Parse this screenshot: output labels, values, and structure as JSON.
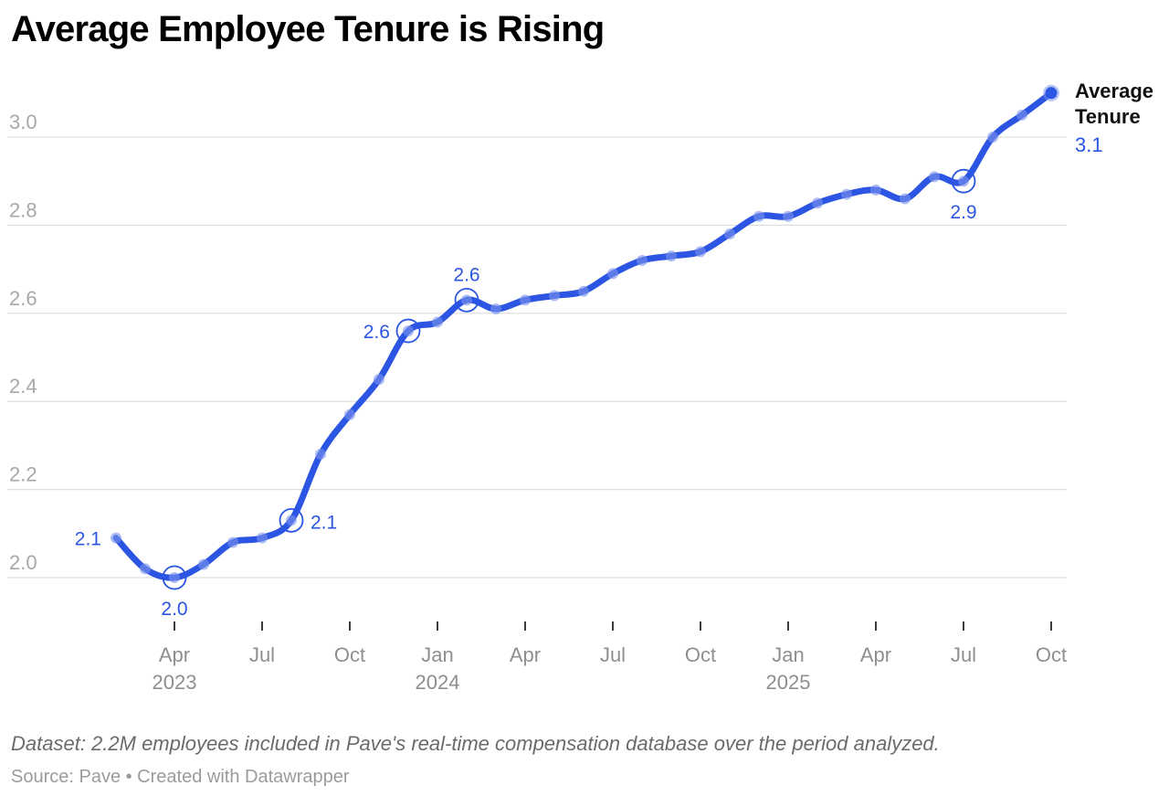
{
  "title": "Average Employee Tenure is Rising",
  "legend": {
    "line1": "Average",
    "line2": "Tenure",
    "value": "3.1"
  },
  "footer": {
    "dataset_note": "Dataset: 2.2M employees included in Pave's real-time compensation database over the period analyzed.",
    "source_line": "Source: Pave • Created with Datawrapper"
  },
  "colors": {
    "accent_blue": "#2b55e2",
    "dot_blue": "#7b93ec",
    "grid_line": "#e0e0e0",
    "y_tick_label": "#a8a8a8",
    "x_tick_label": "#8f8f8f",
    "x_tick_mark": "#3d3d3d",
    "title_text": "#000000",
    "dataset_text": "#6b6b6b",
    "source_text": "#9b9b9b"
  },
  "chart_data": {
    "type": "line",
    "title": "Average Employee Tenure is Rising",
    "xlabel": "",
    "ylabel": "",
    "grid": "horizontal",
    "legend_position": "right-of-last-point",
    "ylim": [
      1.93,
      3.17
    ],
    "yticks": [
      2.0,
      2.2,
      2.4,
      2.6,
      2.8,
      3.0
    ],
    "x": [
      "2023-02",
      "2023-03",
      "2023-04",
      "2023-05",
      "2023-06",
      "2023-07",
      "2023-08",
      "2023-09",
      "2023-10",
      "2023-11",
      "2023-12",
      "2024-01",
      "2024-02",
      "2024-03",
      "2024-04",
      "2024-05",
      "2024-06",
      "2024-07",
      "2024-08",
      "2024-09",
      "2024-10",
      "2024-11",
      "2024-12",
      "2025-01",
      "2025-02",
      "2025-03",
      "2025-04",
      "2025-05",
      "2025-06",
      "2025-07",
      "2025-08",
      "2025-09",
      "2025-10"
    ],
    "series": [
      {
        "name": "Average Tenure",
        "values": [
          2.09,
          2.02,
          2.0,
          2.03,
          2.08,
          2.09,
          2.13,
          2.28,
          2.37,
          2.45,
          2.56,
          2.58,
          2.63,
          2.61,
          2.63,
          2.64,
          2.65,
          2.69,
          2.72,
          2.73,
          2.74,
          2.78,
          2.82,
          2.82,
          2.85,
          2.87,
          2.88,
          2.86,
          2.91,
          2.9,
          3.0,
          3.05,
          3.1
        ]
      }
    ],
    "x_ticks": [
      {
        "index": 2,
        "label": "Apr",
        "year": "2023"
      },
      {
        "index": 5,
        "label": "Jul"
      },
      {
        "index": 8,
        "label": "Oct"
      },
      {
        "index": 11,
        "label": "Jan",
        "year": "2024"
      },
      {
        "index": 14,
        "label": "Apr"
      },
      {
        "index": 17,
        "label": "Jul"
      },
      {
        "index": 20,
        "label": "Oct"
      },
      {
        "index": 23,
        "label": "Jan",
        "year": "2025"
      },
      {
        "index": 26,
        "label": "Apr"
      },
      {
        "index": 29,
        "label": "Jul"
      },
      {
        "index": 32,
        "label": "Oct"
      }
    ],
    "annotations": [
      {
        "index": 0,
        "label": "2.1",
        "placement": "left",
        "ring": false
      },
      {
        "index": 2,
        "label": "2.0",
        "placement": "below",
        "ring": true
      },
      {
        "index": 6,
        "label": "2.1",
        "placement": "right",
        "ring": true
      },
      {
        "index": 10,
        "label": "2.6",
        "placement": "left",
        "ring": true
      },
      {
        "index": 12,
        "label": "2.6",
        "placement": "above",
        "ring": true
      },
      {
        "index": 29,
        "label": "2.9",
        "placement": "below",
        "ring": true
      },
      {
        "index": 32,
        "label": "3.1",
        "placement": "legend",
        "ring": false
      }
    ]
  }
}
